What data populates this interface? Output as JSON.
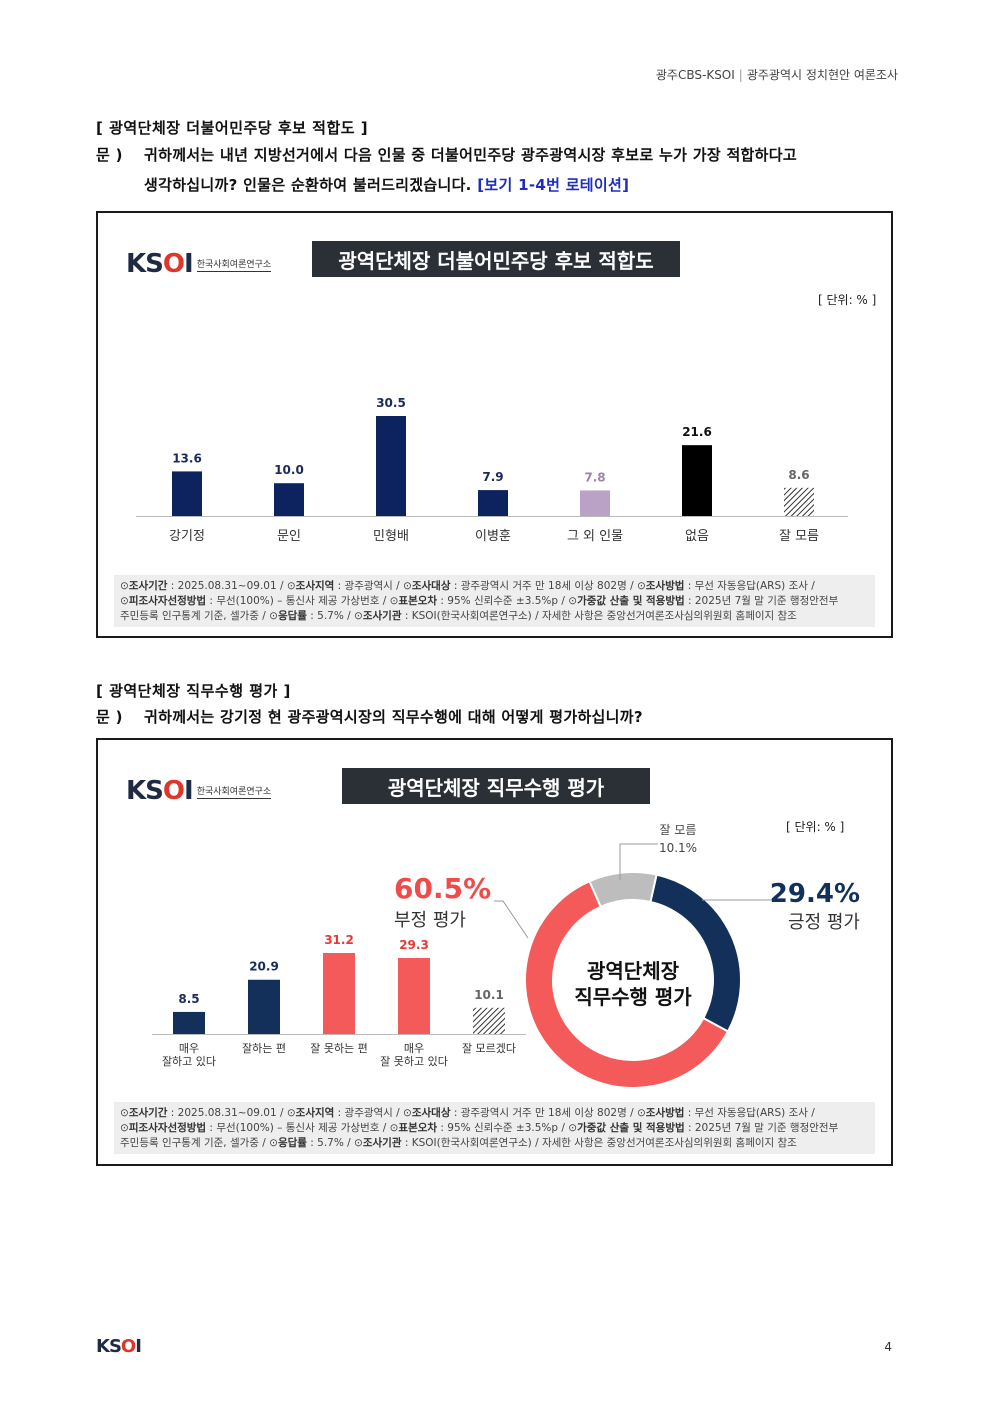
{
  "header": {
    "left": "광주CBS-KSOI",
    "right": "광주광역시 정치현안 여론조사"
  },
  "section1": {
    "title": "[ 광역단체장 더불어민주당 후보 적합도 ]",
    "q_label": "문 )",
    "q_line1": "귀하께서는 내년 지방선거에서 다음 인물 중 더불어민주당 광주광역시장 후보로 누가 가장 적합하다고",
    "q_line2": "생각하십니까? 인물은 순환하여 불러드리겠습니다.",
    "q_hint": "[보기 1-4번 로테이션]"
  },
  "section2": {
    "title": "[ 광역단체장 직무수행 평가 ]",
    "q_label": "문 )",
    "q_line1": "귀하께서는 강기정 현 광주광역시장의 직무수행에 대해 어떻게 평가하십니까?"
  },
  "logo": {
    "mark_k": "K",
    "mark_s": "S",
    "mark_o": "O",
    "mark_i": "I",
    "sub": "한국사회여론연구소"
  },
  "chart1_panel": {
    "title": "광역단체장 더불어민주당 후보 적합도",
    "unit": "[ 단위: % ]"
  },
  "chart2_panel": {
    "title": "광역단체장 직무수행 평가",
    "unit": "[ 단위: % ]",
    "neg_pct": "60.5%",
    "neg_label": "부정 평가",
    "pos_pct": "29.4%",
    "pos_label": "긍정 평가",
    "dk_label": "잘 모름",
    "dk_pct": "10.1%",
    "center_line1": "광역단체장",
    "center_line2": "직무수행 평가"
  },
  "footer": {
    "l1_k1": "조사기간",
    "l1_v1": "2025.08.31~09.01",
    "l1_k2": "조사지역",
    "l1_v2": "광주광역시",
    "l1_k3": "조사대상",
    "l1_v3": "광주광역시 거주 만 18세 이상 802명",
    "l1_k4": "조사방법",
    "l1_v4": "무선 자동응답(ARS) 조사",
    "l2_k1": "피조사자선정방법",
    "l2_v1": "무선(100%) – 통신사 제공 가상번호",
    "l2_k2": "표본오차",
    "l2_v2": "95% 신뢰수준 ±3.5%p",
    "l2_k3": "가중값 산출 및 적용방법",
    "l2_v3": "2025년 7월 말 기준 행정안전부",
    "l3_v0": "주민등록 인구통계 기준, 셀가중",
    "l3_k1": "응답률",
    "l3_v1": "5.7%",
    "l3_k2": "조사기관",
    "l3_v2": "KSOI(한국사회여론연구소)",
    "l3_note": "자세한 사항은 중앙선거여론조사심의위원회 홈페이지 참조"
  },
  "page": {
    "logo_k": "K",
    "logo_s": "S",
    "logo_o": "O",
    "logo_i": "I",
    "number": "4"
  },
  "colors": {
    "navy": "#0d2360",
    "light_purple": "#b9a2c6",
    "black": "#000000",
    "red": "#f45a5a",
    "donut_navy": "#13305a",
    "gray": "#bdbdbd",
    "hint_blue": "#1d2fb8"
  },
  "chart_data": [
    {
      "type": "bar",
      "title": "광역단체장 더불어민주당 후보 적합도",
      "categories": [
        "강기정",
        "문인",
        "민형배",
        "이병훈",
        "그 외 인물",
        "없음",
        "잘 모름"
      ],
      "values": [
        13.6,
        10.0,
        30.5,
        7.9,
        7.8,
        21.6,
        8.6
      ],
      "value_labels": [
        "13.6",
        "10.0",
        "30.5",
        "7.9",
        "7.8",
        "21.6",
        "8.6"
      ],
      "colors": [
        "#0d2360",
        "#0d2360",
        "#0d2360",
        "#0d2360",
        "#b9a2c6",
        "#000000",
        "hatch"
      ],
      "label_colors": [
        "#1a2a5a",
        "#1a2a5a",
        "#1a2a5a",
        "#1a2a5a",
        "#9b84aa",
        "#111111",
        "#666666"
      ],
      "ylim": [
        0,
        35
      ],
      "xlabel": "",
      "ylabel": "",
      "unit": "%"
    },
    {
      "type": "bar",
      "title": "광역단체장 직무수행 평가",
      "categories": [
        [
          "매우",
          "잘하고 있다"
        ],
        [
          "잘하는 편"
        ],
        [
          "잘 못하는 편"
        ],
        [
          "매우",
          "잘 못하고 있다"
        ],
        [
          "잘 모르겠다"
        ]
      ],
      "values": [
        8.5,
        20.9,
        31.2,
        29.3,
        10.1
      ],
      "value_labels": [
        "8.5",
        "20.9",
        "31.2",
        "29.3",
        "10.1"
      ],
      "colors": [
        "#13305a",
        "#13305a",
        "#f45a5a",
        "#f45a5a",
        "hatch"
      ],
      "label_colors": [
        "#1a2a5a",
        "#1a2a5a",
        "#e53935",
        "#e53935",
        "#666666"
      ],
      "ylim": [
        0,
        40
      ],
      "unit": "%"
    },
    {
      "type": "pie",
      "title": "광역단체장 직무수행 평가",
      "labels": [
        "긍정 평가",
        "부정 평가",
        "잘 모름"
      ],
      "values": [
        29.4,
        60.5,
        10.1
      ],
      "colors": [
        "#13305a",
        "#f45a5a",
        "#bdbdbd"
      ]
    }
  ]
}
